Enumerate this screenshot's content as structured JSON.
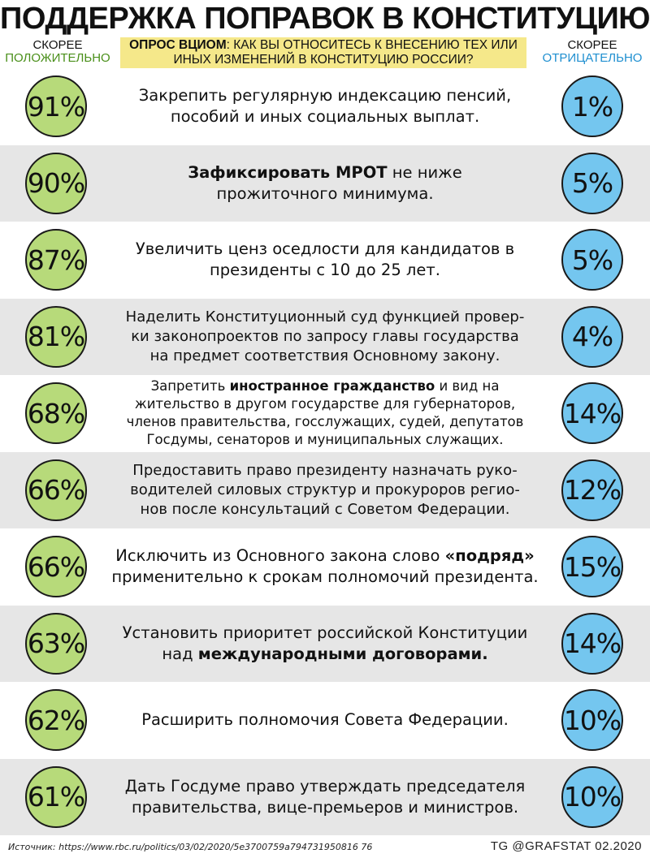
{
  "title": "ПОДДЕРЖКА ПОПРАВОК В КОНСТИТУЦИЮ",
  "survey": {
    "bold": "ОПРОС ВЦИОМ",
    "text_line1": ": КАК ВЫ ОТНОСИТЕСЬ К ВНЕСЕНИЮ ТЕХ ИЛИ",
    "text_line2": "ИНЫХ ИЗМЕНЕНИЙ В КОНСТИТУЦИЮ РОССИИ?"
  },
  "positive_header": {
    "line1": "СКОРЕЕ",
    "line2": "ПОЛОЖИТЕЛЬНО",
    "color": "#4a8f1a"
  },
  "negative_header": {
    "line1": "СКОРЕЕ",
    "line2": "ОТРИЦАТЕЛЬНО",
    "color": "#1f8fd0"
  },
  "chart_data": {
    "type": "table",
    "title": "ПОДДЕРЖКА ПОПРАВОК В КОНСТИТУЦИЮ",
    "columns": [
      "СКОРЕЕ ПОЛОЖИТЕЛЬНО",
      "СКОРЕЕ ОТРИЦАТЕЛЬНО"
    ],
    "colors": {
      "positive": "#b7da7a",
      "negative": "#74c6ef"
    },
    "rows": [
      {
        "positive": "91%",
        "negative": "1%",
        "positive_value": 91,
        "negative_value": 1,
        "lines": [
          [
            {
              "t": "Закрепить регулярную индексацию пенсий,"
            }
          ],
          [
            {
              "t": "пособий и иных социальных выплат."
            }
          ]
        ]
      },
      {
        "positive": "90%",
        "negative": "5%",
        "positive_value": 90,
        "negative_value": 5,
        "lines": [
          [
            {
              "t": "Зафиксировать МРОТ",
              "b": true
            },
            {
              "t": " не ниже"
            }
          ],
          [
            {
              "t": "прожиточного минимума."
            }
          ]
        ]
      },
      {
        "positive": "87%",
        "negative": "5%",
        "positive_value": 87,
        "negative_value": 5,
        "lines": [
          [
            {
              "t": "Увеличить ценз оседлости для кандидатов в"
            }
          ],
          [
            {
              "t": "президенты с 10 до 25 лет."
            }
          ]
        ]
      },
      {
        "positive": "81%",
        "negative": "4%",
        "positive_value": 81,
        "negative_value": 4,
        "lines": [
          [
            {
              "t": "Наделить Конституционный суд функцией провер-"
            }
          ],
          [
            {
              "t": "ки законопроектов по запросу главы государства"
            }
          ],
          [
            {
              "t": "на предмет соответствия Основному закону."
            }
          ]
        ]
      },
      {
        "positive": "68%",
        "negative": "14%",
        "positive_value": 68,
        "negative_value": 14,
        "lines": [
          [
            {
              "t": "Запретить "
            },
            {
              "t": "иностранное гражданство",
              "b": true
            },
            {
              "t": " и вид на"
            }
          ],
          [
            {
              "t": "жительство в другом государстве для губернаторов,"
            }
          ],
          [
            {
              "t": "членов правительства, госслужащих, судей, депутатов"
            }
          ],
          [
            {
              "t": "Госдумы, сенаторов и муниципальных служащих."
            }
          ]
        ]
      },
      {
        "positive": "66%",
        "negative": "12%",
        "positive_value": 66,
        "negative_value": 12,
        "lines": [
          [
            {
              "t": "Предоставить право президенту назначать руко-"
            }
          ],
          [
            {
              "t": "водителей силовых структур и прокуроров регио-"
            }
          ],
          [
            {
              "t": "нов после консультаций с Советом Федерации."
            }
          ]
        ]
      },
      {
        "positive": "66%",
        "negative": "15%",
        "positive_value": 66,
        "negative_value": 15,
        "lines": [
          [
            {
              "t": "Исключить из Основного закона слово "
            },
            {
              "t": "«подряд»",
              "b": true
            }
          ],
          [
            {
              "t": "применительно к срокам полномочий президента."
            }
          ]
        ]
      },
      {
        "positive": "63%",
        "negative": "14%",
        "positive_value": 63,
        "negative_value": 14,
        "lines": [
          [
            {
              "t": "Установить приоритет российской Конституции"
            }
          ],
          [
            {
              "t": "над "
            },
            {
              "t": "международными договорами.",
              "b": true
            }
          ]
        ]
      },
      {
        "positive": "62%",
        "negative": "10%",
        "positive_value": 62,
        "negative_value": 10,
        "lines": [
          [
            {
              "t": "Расширить полномочия Совета Федерации."
            }
          ]
        ]
      },
      {
        "positive": "61%",
        "negative": "10%",
        "positive_value": 61,
        "negative_value": 10,
        "lines": [
          [
            {
              "t": "Дать Госдуме право утверждать председателя"
            }
          ],
          [
            {
              "t": "правительства, вице-премьеров и министров."
            }
          ]
        ]
      }
    ]
  },
  "footer": {
    "source": "Источник: https://www.rbc.ru/politics/03/02/2020/5e3700759a794731950816 76",
    "credit": "TG @GRAFSTAT 02.2020"
  }
}
